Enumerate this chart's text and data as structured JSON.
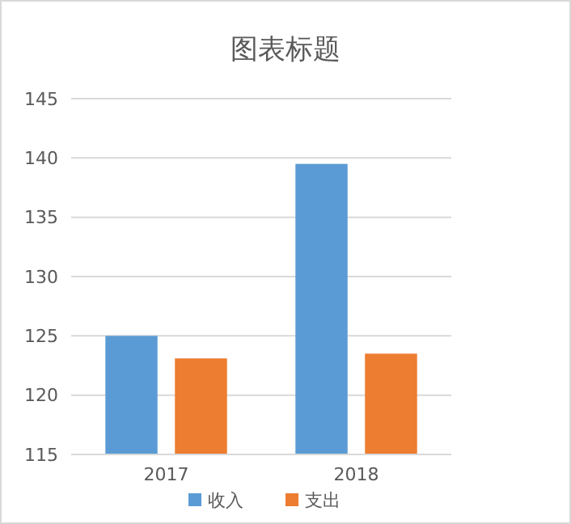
{
  "chart_data": {
    "type": "bar",
    "title": "图表标题",
    "categories": [
      "2017",
      "2018"
    ],
    "series": [
      {
        "name": "收入",
        "color": "#5b9bd5",
        "values": [
          125,
          139.5
        ]
      },
      {
        "name": "支出",
        "color": "#ed7d31",
        "values": [
          123.1,
          123.5
        ]
      }
    ],
    "ylim": [
      115,
      145
    ],
    "yticks": [
      115,
      120,
      125,
      130,
      135,
      140,
      145
    ],
    "grid": "y",
    "legend": "bottom"
  }
}
